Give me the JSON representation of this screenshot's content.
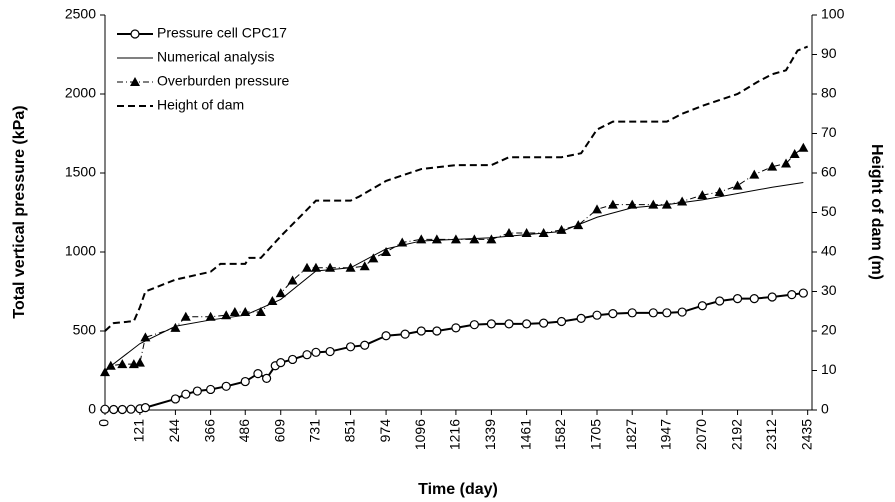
{
  "chart_data": {
    "type": "line",
    "xlabel": "Time (day)",
    "ylabel": "Total vertical pressure (kPa)",
    "y2label": "Height of dam (m)",
    "xlim": [
      0,
      2450
    ],
    "xticks": [
      0,
      121,
      244,
      366,
      486,
      609,
      731,
      851,
      974,
      1096,
      1216,
      1339,
      1461,
      1582,
      1705,
      1827,
      1947,
      2070,
      2192,
      2312,
      2435
    ],
    "ylim": [
      0,
      2500
    ],
    "yticks": [
      0,
      500,
      1000,
      1500,
      2000,
      2500
    ],
    "y2lim": [
      0,
      100
    ],
    "y2ticks": [
      0,
      10,
      20,
      30,
      40,
      50,
      60,
      70,
      80,
      90,
      100
    ],
    "grid": false,
    "legend": "upper left",
    "series": [
      {
        "name": "Pressure cell CPC17",
        "color": "#000000",
        "marker": "circle",
        "line": "solid",
        "width": 2,
        "x": [
          0,
          30,
          60,
          90,
          121,
          140,
          244,
          280,
          320,
          366,
          420,
          486,
          530,
          560,
          590,
          609,
          650,
          700,
          731,
          780,
          851,
          900,
          974,
          1040,
          1096,
          1150,
          1216,
          1280,
          1339,
          1400,
          1461,
          1520,
          1582,
          1650,
          1705,
          1760,
          1827,
          1900,
          1947,
          2000,
          2070,
          2130,
          2192,
          2250,
          2312,
          2380,
          2420
        ],
        "values": [
          5,
          3,
          3,
          5,
          8,
          15,
          70,
          100,
          120,
          130,
          150,
          180,
          230,
          200,
          280,
          300,
          320,
          350,
          365,
          370,
          400,
          410,
          470,
          480,
          500,
          500,
          520,
          540,
          545,
          545,
          545,
          550,
          560,
          580,
          600,
          610,
          615,
          615,
          615,
          620,
          660,
          690,
          705,
          705,
          715,
          730,
          740
        ]
      },
      {
        "name": "Numerical analysis",
        "color": "#000000",
        "marker": "none",
        "line": "solid",
        "width": 1,
        "x": [
          0,
          121,
          244,
          366,
          486,
          609,
          731,
          851,
          974,
          1096,
          1216,
          1339,
          1461,
          1582,
          1705,
          1827,
          1947,
          2070,
          2192,
          2312,
          2420
        ],
        "values": [
          250,
          420,
          530,
          570,
          600,
          700,
          880,
          900,
          1020,
          1070,
          1080,
          1090,
          1110,
          1130,
          1220,
          1280,
          1300,
          1330,
          1370,
          1410,
          1440
        ]
      },
      {
        "name": "Overburden pressure",
        "color": "#000000",
        "marker": "triangle",
        "line": "dashdot",
        "width": 1,
        "x": [
          0,
          20,
          60,
          100,
          121,
          140,
          244,
          280,
          366,
          420,
          450,
          486,
          540,
          580,
          609,
          650,
          700,
          731,
          780,
          851,
          900,
          930,
          974,
          1030,
          1096,
          1150,
          1216,
          1280,
          1339,
          1400,
          1461,
          1520,
          1582,
          1640,
          1705,
          1760,
          1827,
          1900,
          1947,
          2000,
          2070,
          2130,
          2192,
          2250,
          2312,
          2360,
          2390,
          2420
        ],
        "values": [
          240,
          280,
          290,
          290,
          300,
          460,
          520,
          590,
          590,
          600,
          620,
          620,
          620,
          690,
          740,
          820,
          900,
          900,
          900,
          900,
          910,
          960,
          1000,
          1060,
          1080,
          1080,
          1080,
          1080,
          1080,
          1120,
          1120,
          1120,
          1140,
          1170,
          1270,
          1300,
          1300,
          1300,
          1300,
          1320,
          1360,
          1380,
          1420,
          1490,
          1540,
          1560,
          1620,
          1660
        ]
      },
      {
        "name": "Height of dam",
        "color": "#000000",
        "marker": "none",
        "line": "dashed",
        "width": 2,
        "axis": "y2",
        "x": [
          0,
          30,
          100,
          121,
          140,
          244,
          366,
          400,
          486,
          500,
          540,
          609,
          731,
          851,
          880,
          974,
          1096,
          1216,
          1339,
          1400,
          1582,
          1650,
          1705,
          1760,
          1947,
          2000,
          2070,
          2192,
          2260,
          2312,
          2360,
          2400,
          2435
        ],
        "values": [
          20,
          22,
          22.5,
          26,
          30,
          33,
          35,
          37,
          37,
          38.5,
          38.5,
          44,
          53,
          53,
          54,
          58,
          61,
          62,
          62,
          64,
          64,
          65,
          71,
          73,
          73,
          75,
          77,
          80,
          83,
          85,
          86,
          91,
          92
        ]
      }
    ]
  }
}
